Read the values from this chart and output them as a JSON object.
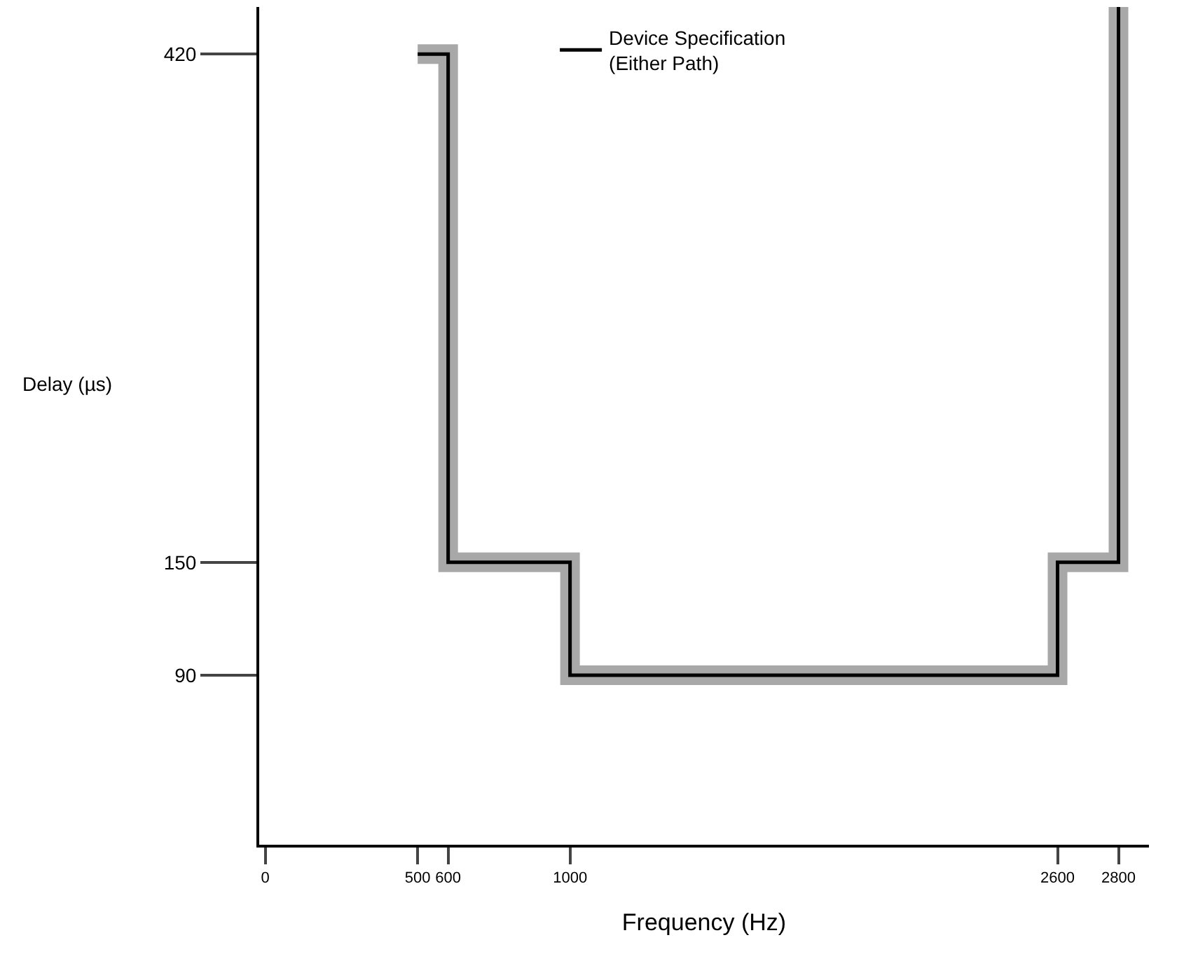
{
  "chart_data": {
    "type": "line",
    "xlabel": "Frequency (Hz)",
    "ylabel": "Delay (µs)",
    "x": [
      500,
      600,
      600,
      1000,
      1000,
      2600,
      2600,
      2800,
      2800
    ],
    "series": [
      {
        "name": "Device Specification\n(Either Path)",
        "color": "#000000",
        "values": [
          420,
          420,
          150,
          150,
          90,
          90,
          150,
          150,
          445
        ]
      }
    ],
    "xlim": [
      -20,
      2900
    ],
    "xticks": [
      0,
      500,
      600,
      1000,
      2600,
      2800
    ],
    "ylim": [
      0,
      445
    ],
    "yticks": [
      90,
      150,
      420
    ],
    "legend": "top right",
    "marker": "none",
    "line_style": "solid"
  }
}
